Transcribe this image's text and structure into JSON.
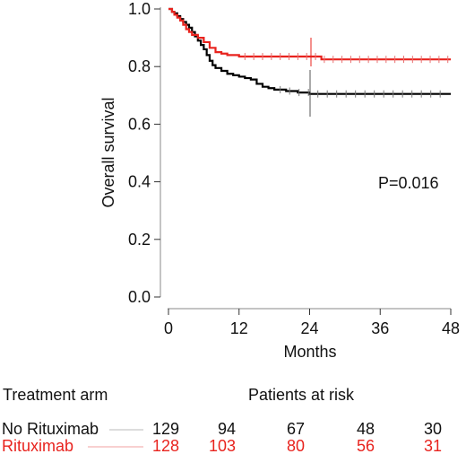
{
  "chart_data": {
    "type": "line",
    "title": "",
    "xlabel": "Months",
    "ylabel": "Overall survival",
    "xlim": [
      0,
      48
    ],
    "ylim": [
      0,
      1.0
    ],
    "xticks": [
      "0",
      "12",
      "24",
      "36",
      "48"
    ],
    "yticks": [
      "0.0",
      "0.2",
      "0.4",
      "0.6",
      "0.8",
      "1.0"
    ],
    "annotation": "P=0.016",
    "series": [
      {
        "name": "No Rituximab",
        "color": "#000000",
        "x": [
          0,
          0.6,
          1.0,
          1.5,
          2.0,
          2.5,
          3.0,
          3.5,
          4.0,
          4.5,
          5.0,
          5.5,
          6.0,
          6.5,
          7.0,
          7.5,
          8.0,
          9.0,
          10.0,
          11.0,
          12.0,
          13.0,
          14.0,
          15.0,
          16.0,
          17.0,
          18.0,
          20.0,
          22.0,
          24.0,
          48.0
        ],
        "y": [
          1.0,
          0.99,
          0.985,
          0.975,
          0.965,
          0.955,
          0.945,
          0.935,
          0.92,
          0.905,
          0.89,
          0.875,
          0.86,
          0.84,
          0.82,
          0.805,
          0.795,
          0.785,
          0.775,
          0.77,
          0.765,
          0.76,
          0.755,
          0.74,
          0.73,
          0.725,
          0.72,
          0.715,
          0.71,
          0.705,
          0.705
        ]
      },
      {
        "name": "Rituximab",
        "color": "#e8231e",
        "x": [
          0,
          0.6,
          1.0,
          1.5,
          2.0,
          2.5,
          3.0,
          3.5,
          4.0,
          5.0,
          6.0,
          7.0,
          8.0,
          9.0,
          10.0,
          12.0,
          24.0,
          26.0,
          48.0
        ],
        "y": [
          1.0,
          0.99,
          0.98,
          0.97,
          0.96,
          0.945,
          0.93,
          0.92,
          0.91,
          0.9,
          0.885,
          0.865,
          0.85,
          0.845,
          0.84,
          0.835,
          0.835,
          0.825,
          0.825
        ]
      }
    ]
  },
  "risk_table": {
    "header_left": "Treatment arm",
    "header_right": "Patients at risk",
    "rows": [
      {
        "label": "No Rituximab",
        "color": "#111111",
        "values": [
          "129",
          "94",
          "67",
          "48",
          "30"
        ]
      },
      {
        "label": "Rituximab",
        "color": "#e8231e",
        "values": [
          "128",
          "103",
          "80",
          "56",
          "31"
        ]
      }
    ]
  }
}
